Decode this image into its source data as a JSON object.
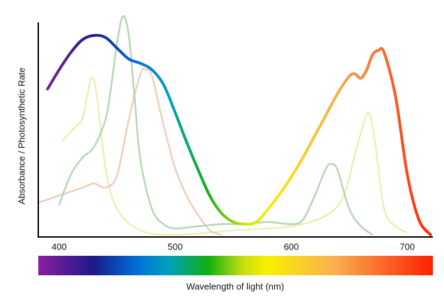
{
  "chart_data": {
    "type": "line",
    "x_label": "Wavelength of light (nm)",
    "y_label": "Absorbance / Photosynthetic Rate",
    "xlim": [
      382,
      722
    ],
    "ylim": [
      0,
      105
    ],
    "xticks": [
      400,
      500,
      600,
      700
    ],
    "series": [
      {
        "color": "#e3f0a8",
        "x": [
          403,
          415,
          420,
          425,
          428,
          432,
          440,
          450,
          470,
          500,
          550,
          600,
          630,
          645,
          655,
          662,
          667,
          672,
          680,
          690,
          700
        ],
        "values": [
          45,
          52,
          55,
          68,
          74,
          68,
          32,
          13,
          3,
          1,
          3,
          5,
          10,
          19,
          39,
          52,
          58,
          45,
          13,
          5,
          2
        ]
      },
      {
        "color": "#f0c4ae",
        "x": [
          382,
          420,
          430,
          440,
          450,
          460,
          470,
          475,
          480,
          490,
          500,
          510,
          520,
          530,
          540
        ],
        "values": [
          16,
          23,
          25,
          23,
          29,
          55,
          76,
          78,
          75,
          52,
          32,
          19,
          10,
          3,
          1
        ]
      },
      {
        "color": "#a8cfa8",
        "x": [
          400,
          410,
          420,
          430,
          440,
          445,
          450,
          455,
          460,
          465,
          470,
          480,
          490,
          500,
          520,
          540,
          560,
          580,
          600,
          610,
          620,
          630,
          635,
          640,
          650,
          660,
          670
        ],
        "values": [
          15,
          29,
          37,
          42,
          55,
          71,
          91,
          103,
          94,
          65,
          36,
          13,
          6,
          4,
          5,
          6,
          6,
          7,
          6,
          8,
          19,
          32,
          34,
          31,
          13,
          5,
          1
        ]
      },
      {
        "color": "spectrum",
        "width": 4,
        "x": [
          390,
          400,
          410,
          420,
          430,
          440,
          450,
          460,
          470,
          480,
          490,
          500,
          510,
          520,
          530,
          540,
          550,
          560,
          570,
          580,
          590,
          600,
          610,
          620,
          630,
          640,
          650,
          655,
          660,
          665,
          670,
          675,
          680,
          690,
          700,
          710,
          720
        ],
        "values": [
          69,
          78,
          86,
          92,
          94,
          93,
          88,
          83,
          81,
          78,
          71,
          58,
          44,
          31,
          19,
          11,
          7,
          6,
          7,
          13,
          20,
          28,
          37,
          47,
          57,
          67,
          75,
          76,
          74,
          78,
          85,
          87,
          86,
          65,
          29,
          8,
          1
        ]
      }
    ]
  }
}
